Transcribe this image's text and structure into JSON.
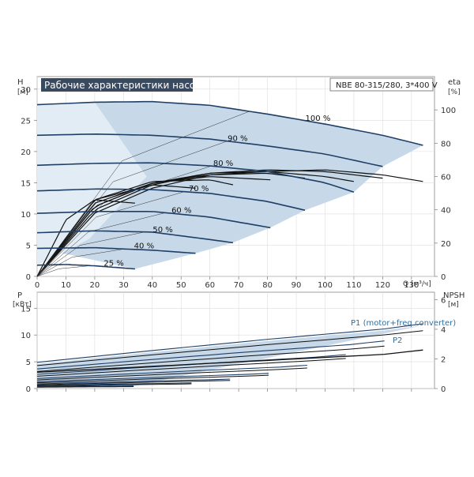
{
  "title": "Рабочие характеристики насоса",
  "model": "NBE 80-315/280, 3*400 V",
  "colors": {
    "curve_dark": "#1f3f66",
    "region_fill": "#c7d8e8",
    "title_bg": "#3a4a5e",
    "p1_label": "#2f6fa0",
    "efficiency": "#111111",
    "axis": "#888888"
  },
  "top_axes": {
    "y_left_label": "H",
    "y_left_unit": "[м]",
    "y_right_label": "eta",
    "y_right_unit": "[%]",
    "x_unit": "Q [м³/ч]",
    "x_ticks": [
      "0",
      "10",
      "20",
      "30",
      "40",
      "50",
      "60",
      "70",
      "80",
      "90",
      "100",
      "110",
      "120",
      "130"
    ],
    "y_left_ticks": [
      "0",
      "5",
      "10",
      "15",
      "20",
      "25",
      "30"
    ],
    "y_right_ticks": [
      "0",
      "20",
      "40",
      "60",
      "80",
      "100"
    ]
  },
  "bottom_axes": {
    "y_left_label": "P",
    "y_left_unit": "[кВт]",
    "y_right_label": "NPSH",
    "y_right_unit": "[м]",
    "y_left_ticks": [
      "0",
      "5",
      "10",
      "15"
    ],
    "y_right_ticks": [
      "0",
      "2",
      "4",
      "6"
    ],
    "p1_label": "P1 (motor+freq.converter)",
    "p2_label": "P2"
  },
  "chart_data": [
    {
      "type": "line",
      "title": "Рабочие характеристики насоса",
      "xlabel": "Q [м³/ч]",
      "ylabel": "H [м]",
      "y2label": "eta [%]",
      "xlim": [
        0,
        138
      ],
      "ylim": [
        0,
        32
      ],
      "y2lim": [
        0,
        120
      ],
      "grid": true,
      "series": [
        {
          "name": "100 %",
          "x": [
            0,
            20,
            40,
            60,
            80,
            100,
            120,
            134
          ],
          "values": [
            27.5,
            27.9,
            28.0,
            27.4,
            26.0,
            24.4,
            22.6,
            21.0
          ]
        },
        {
          "name": "90 %",
          "x": [
            0,
            20,
            40,
            60,
            80,
            100,
            120
          ],
          "values": [
            22.6,
            22.8,
            22.6,
            22.0,
            20.9,
            19.6,
            17.6
          ]
        },
        {
          "name": "80 %",
          "x": [
            0,
            20,
            40,
            60,
            80,
            100,
            110
          ],
          "values": [
            17.8,
            18.1,
            18.2,
            17.7,
            16.8,
            15.0,
            13.5
          ]
        },
        {
          "name": "70 %",
          "x": [
            0,
            20,
            40,
            60,
            80,
            93
          ],
          "values": [
            13.7,
            14.0,
            13.9,
            13.3,
            12.0,
            10.6
          ]
        },
        {
          "name": "60 %",
          "x": [
            0,
            20,
            40,
            60,
            81
          ],
          "values": [
            10.1,
            10.4,
            10.4,
            9.5,
            7.8
          ]
        },
        {
          "name": "50 %",
          "x": [
            0,
            20,
            40,
            60,
            68
          ],
          "values": [
            7.0,
            7.3,
            7.1,
            5.9,
            5.4
          ]
        },
        {
          "name": "40 %",
          "x": [
            0,
            20,
            40,
            55
          ],
          "values": [
            4.5,
            4.6,
            4.2,
            3.7
          ]
        },
        {
          "name": "25 %",
          "x": [
            0,
            10,
            20,
            34
          ],
          "values": [
            1.8,
            1.9,
            1.7,
            1.2
          ]
        },
        {
          "name": "eta 100 %",
          "axis": "right",
          "x": [
            0,
            20,
            40,
            60,
            80,
            100,
            120,
            134
          ],
          "values": [
            0,
            38,
            53,
            61,
            63,
            64,
            61,
            57
          ]
        },
        {
          "name": "eta 90 %",
          "axis": "right",
          "x": [
            0,
            20,
            40,
            60,
            80,
            100,
            120
          ],
          "values": [
            0,
            40,
            55,
            62,
            64,
            63,
            59
          ]
        },
        {
          "name": "eta 80 %",
          "axis": "right",
          "x": [
            0,
            20,
            40,
            60,
            80,
            100,
            110
          ],
          "values": [
            0,
            42,
            56,
            62,
            63,
            60,
            57
          ]
        },
        {
          "name": "eta 70 %",
          "axis": "right",
          "x": [
            0,
            20,
            40,
            60,
            80,
            93
          ],
          "values": [
            0,
            42,
            56,
            61,
            62,
            59
          ]
        },
        {
          "name": "eta 60 %",
          "axis": "right",
          "x": [
            0,
            20,
            40,
            60,
            81
          ],
          "values": [
            0,
            44,
            56,
            60,
            58
          ]
        },
        {
          "name": "eta 50 %",
          "axis": "right",
          "x": [
            0,
            20,
            40,
            60,
            68
          ],
          "values": [
            0,
            46,
            57,
            58,
            55
          ]
        },
        {
          "name": "eta 40 %",
          "axis": "right",
          "x": [
            0,
            20,
            40,
            55
          ],
          "values": [
            0,
            46,
            55,
            53
          ]
        },
        {
          "name": "eta 25 %",
          "axis": "right",
          "x": [
            0,
            10,
            20,
            34
          ],
          "values": [
            0,
            34,
            46,
            44
          ]
        }
      ]
    },
    {
      "type": "line",
      "xlabel": "Q [м³/ч]",
      "ylabel": "P [кВт]",
      "y2label": "NPSH [м]",
      "xlim": [
        0,
        138
      ],
      "ylim": [
        0,
        18
      ],
      "y2lim": [
        0,
        6.5
      ],
      "grid": true,
      "series": [
        {
          "name": "P1 (motor+freq.converter)",
          "x": [
            0,
            40,
            80,
            120,
            134
          ],
          "values": [
            4.6,
            6.8,
            8.9,
            10.8,
            11.8
          ]
        },
        {
          "name": "P2",
          "x": [
            0,
            40,
            80,
            120,
            134
          ],
          "values": [
            4.1,
            6.1,
            8.0,
            9.8,
            10.6
          ]
        },
        {
          "name": "NPSH",
          "axis": "right",
          "x": [
            0,
            40,
            80,
            120,
            134
          ],
          "values": [
            1.1,
            1.5,
            1.9,
            2.3,
            2.6
          ]
        }
      ]
    }
  ]
}
